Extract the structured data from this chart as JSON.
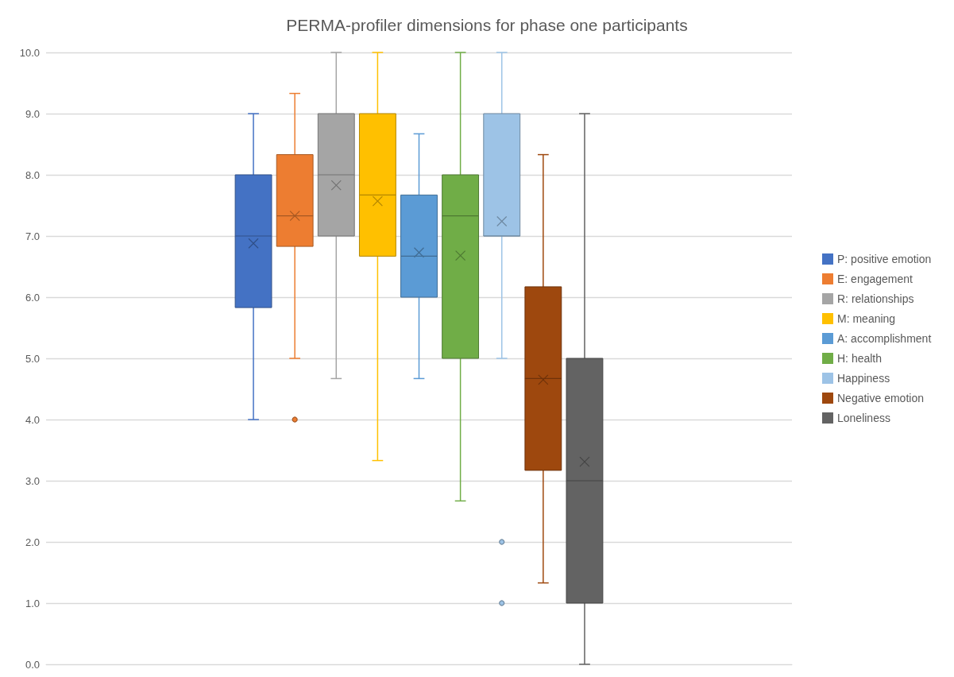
{
  "chart_data": {
    "type": "box",
    "title": "PERMA-profiler dimensions for phase one participants",
    "categories": [
      null
    ],
    "ylim": [
      0,
      10
    ],
    "yticks": [
      {
        "value": 0,
        "label": "0.0"
      },
      {
        "value": 1,
        "label": "1.0"
      },
      {
        "value": 2,
        "label": "2.0"
      },
      {
        "value": 3,
        "label": "3.0"
      },
      {
        "value": 4,
        "label": "4.0"
      },
      {
        "value": 5,
        "label": "5.0"
      },
      {
        "value": 6,
        "label": "6.0"
      },
      {
        "value": 7,
        "label": "7.0"
      },
      {
        "value": 8,
        "label": "8.0"
      },
      {
        "value": 9,
        "label": "9.0"
      },
      {
        "value": 10,
        "label": "10.0"
      }
    ],
    "grid": "y",
    "legend": "right",
    "series": [
      {
        "name": "P: positive emotion",
        "color": "#4472c4",
        "boxes": [
          {
            "low": 4,
            "q1": 5.83,
            "median": 7,
            "q3": 8,
            "high": 9,
            "mean": 6.88
          }
        ]
      },
      {
        "name": "E: engagement",
        "color": "#ed7d31",
        "boxes": [
          {
            "low": 5,
            "q1": 6.83,
            "median": 7.33,
            "q3": 8.33,
            "high": 9.33,
            "mean": 7.33,
            "outliers": [
              4
            ]
          }
        ]
      },
      {
        "name": "R: relationships",
        "color": "#a5a5a5",
        "boxes": [
          {
            "low": 4.67,
            "q1": 7,
            "median": 8,
            "q3": 9,
            "high": 10,
            "mean": 7.83
          }
        ]
      },
      {
        "name": "M: meaning",
        "color": "#ffc000",
        "boxes": [
          {
            "low": 3.33,
            "q1": 6.67,
            "median": 7.67,
            "q3": 9,
            "high": 10,
            "mean": 7.57
          }
        ]
      },
      {
        "name": "A: accomplishment",
        "color": "#5b9bd5",
        "boxes": [
          {
            "low": 4.67,
            "q1": 6,
            "median": 6.67,
            "q3": 7.67,
            "high": 8.67,
            "mean": 6.73
          }
        ]
      },
      {
        "name": "H: health",
        "color": "#70ad47",
        "boxes": [
          {
            "low": 2.67,
            "q1": 5,
            "median": 7.33,
            "q3": 8,
            "high": 10,
            "mean": 6.68
          }
        ]
      },
      {
        "name": "Happiness",
        "color": "#9dc3e6",
        "boxes": [
          {
            "low": 5,
            "q1": 7,
            "median": 7,
            "q3": 9,
            "high": 10,
            "mean": 7.24,
            "outliers": [
              2,
              1
            ]
          }
        ]
      },
      {
        "name": "Negative emotion",
        "color": "#9e480e",
        "boxes": [
          {
            "low": 1.33,
            "q1": 3.17,
            "median": 4.67,
            "q3": 6.17,
            "high": 8.33,
            "mean": 4.65
          }
        ]
      },
      {
        "name": "Loneliness",
        "color": "#636363",
        "boxes": [
          {
            "low": 0,
            "q1": 1,
            "median": 3,
            "q3": 5,
            "high": 9,
            "mean": 3.31
          }
        ]
      }
    ]
  }
}
